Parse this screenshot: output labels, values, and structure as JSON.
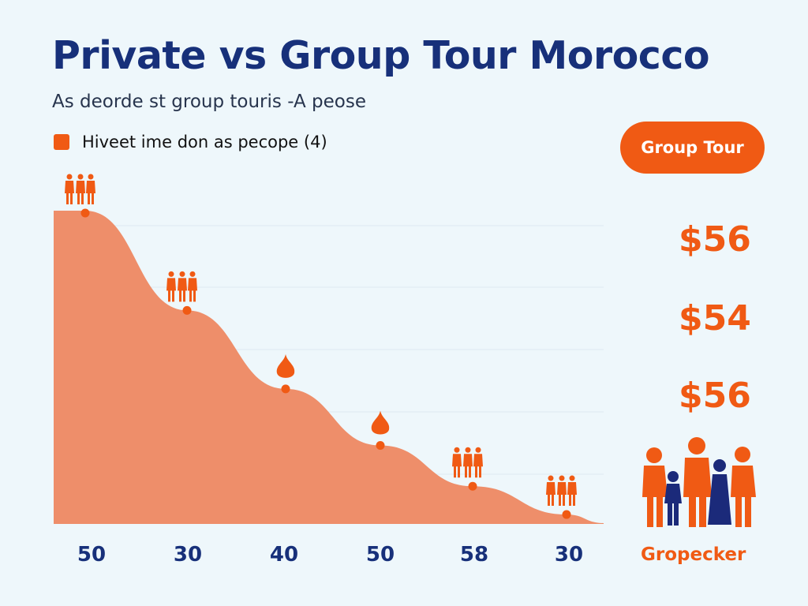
{
  "colors": {
    "title": "#17307a",
    "accent": "#f05a14",
    "area": "#ee8e6a",
    "background": "#eef7fb",
    "navy_figure": "#1b2a7a"
  },
  "chart_data": {
    "type": "area",
    "title": "Private vs Group Tour Morocco",
    "subtitle": "As deorde st group touris -A peose",
    "legend": {
      "label": "Hiveet ime don as pecope (4)",
      "placement": "top-left"
    },
    "categories": [
      "50",
      "30",
      "40",
      "50",
      "58",
      "30"
    ],
    "values": [
      0.99,
      0.68,
      0.43,
      0.25,
      0.12,
      0.03
    ],
    "value_note_unit": "relative height (no y-axis printed)",
    "markers": [
      "people-group-icon",
      "people-group-icon",
      "drop-icon",
      "drop-icon",
      "people-group-icon",
      "people-group-icon"
    ],
    "grid": true,
    "xlabel": "",
    "ylabel": ""
  },
  "sidebar": {
    "badge": "Group Tour",
    "prices": [
      "$56",
      "$54",
      "$56"
    ],
    "brand": "Gropecker",
    "icon": "family-group-icon"
  }
}
